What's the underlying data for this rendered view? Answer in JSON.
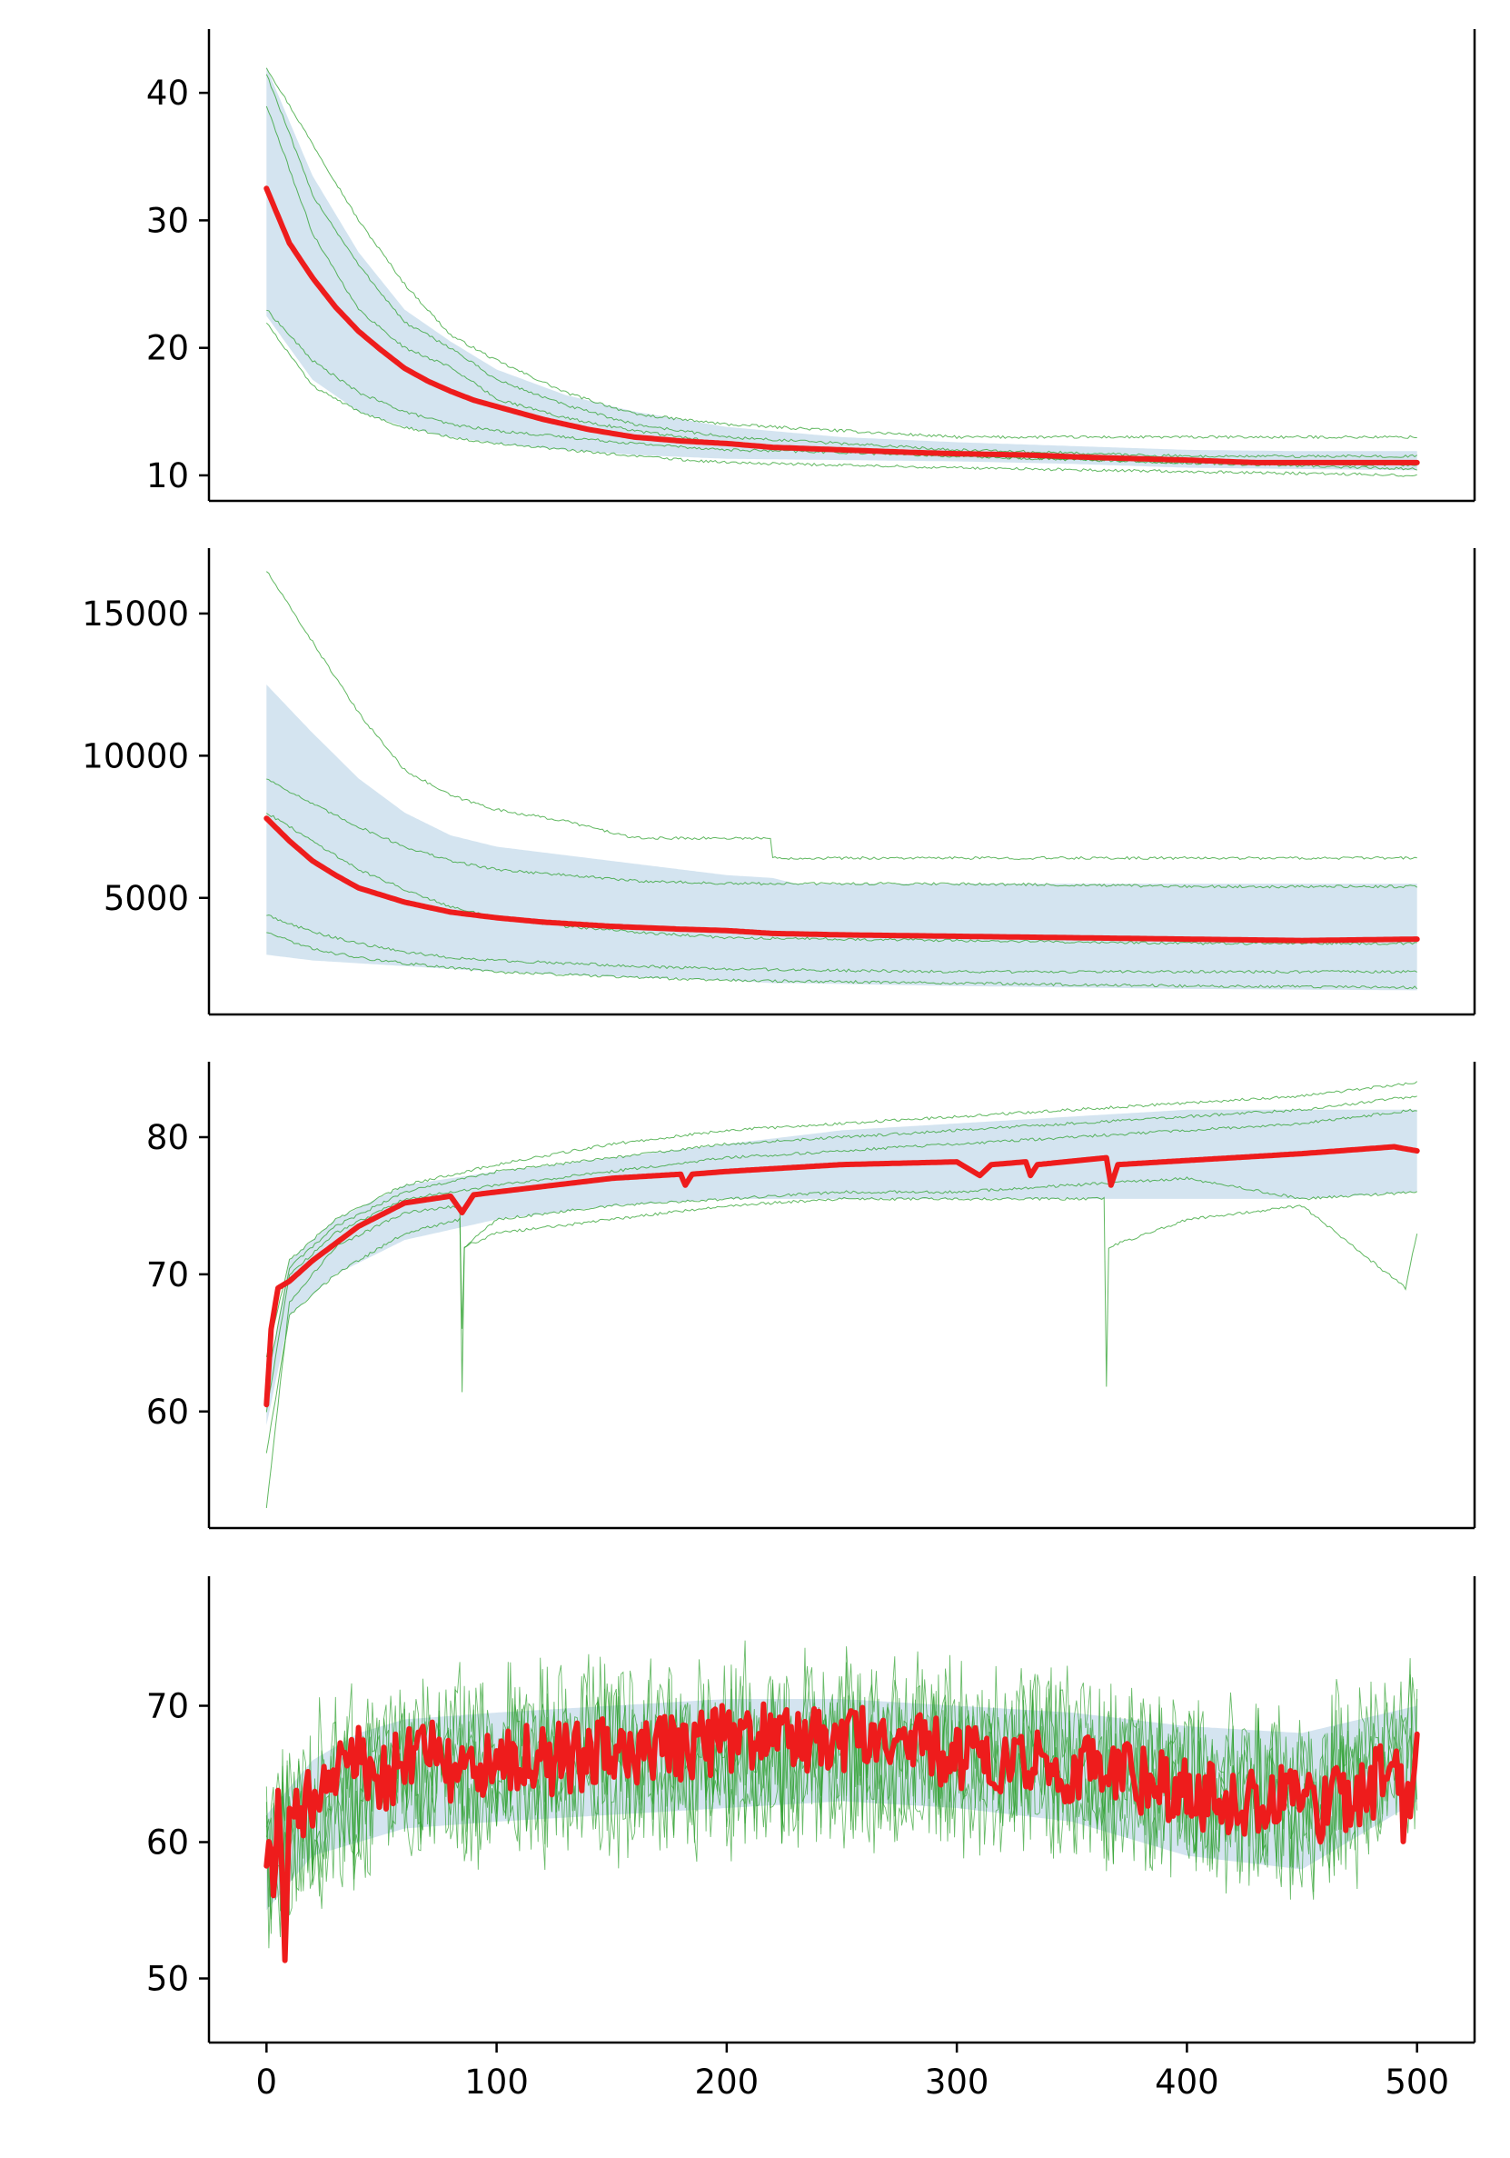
{
  "chart_data": [
    {
      "type": "line",
      "title": "",
      "xlabel": "",
      "ylabel": "",
      "xlim": [
        -25,
        525
      ],
      "ylim": [
        8,
        45
      ],
      "xticks": [
        0,
        100,
        200,
        300,
        400,
        500
      ],
      "yticks": [
        10,
        20,
        30,
        40
      ],
      "ytick_labels": [
        "10",
        "20",
        "30",
        "40"
      ],
      "show_xticks": false,
      "grid": false,
      "colors": {
        "mean": "#ee1c1c",
        "runs": "#2ca02c",
        "band": "#c6dbeb"
      },
      "mean": {
        "x": [
          0,
          10,
          20,
          30,
          40,
          50,
          60,
          70,
          80,
          90,
          100,
          120,
          140,
          160,
          180,
          200,
          220,
          250,
          280,
          300,
          330,
          360,
          400,
          430,
          460,
          500
        ],
        "y": [
          32.5,
          28.2,
          25.5,
          23.2,
          21.3,
          19.8,
          18.4,
          17.4,
          16.6,
          15.9,
          15.4,
          14.4,
          13.6,
          13.0,
          12.7,
          12.5,
          12.2,
          12.0,
          11.8,
          11.7,
          11.6,
          11.4,
          11.2,
          11.0,
          11.0,
          11.0
        ]
      },
      "band": {
        "x": [
          0,
          20,
          40,
          60,
          80,
          100,
          130,
          160,
          200,
          250,
          300,
          350,
          400,
          450,
          500
        ],
        "upper": [
          42,
          33.5,
          27.5,
          23.0,
          20.5,
          18.3,
          16.3,
          15.0,
          13.8,
          13.0,
          12.6,
          12.3,
          12.0,
          11.9,
          11.9
        ],
        "lower": [
          22.5,
          17.5,
          15.0,
          13.8,
          13.0,
          12.5,
          12.0,
          11.6,
          11.3,
          11.2,
          11.1,
          10.9,
          10.6,
          10.5,
          10.4
        ]
      },
      "runs": [
        {
          "x": [
            0,
            20,
            40,
            60,
            80,
            100,
            130,
            160,
            200,
            250,
            300,
            400,
            500
          ],
          "y": [
            42.0,
            36.0,
            30.0,
            25.0,
            21.0,
            19.0,
            16.5,
            14.8,
            14.0,
            13.5,
            13.0,
            13.0,
            13.0
          ]
        },
        {
          "x": [
            0,
            20,
            40,
            60,
            80,
            100,
            130,
            160,
            200,
            250,
            300,
            400,
            500
          ],
          "y": [
            41.5,
            32.0,
            26.5,
            22.0,
            20.0,
            17.5,
            15.5,
            14.0,
            13.0,
            12.5,
            12.0,
            11.5,
            11.5
          ]
        },
        {
          "x": [
            0,
            20,
            40,
            60,
            80,
            100,
            130,
            160,
            200,
            250,
            300,
            400,
            500
          ],
          "y": [
            39.0,
            29.0,
            23.0,
            20.0,
            18.5,
            16.0,
            14.5,
            13.5,
            12.5,
            12.0,
            11.5,
            11.0,
            10.8
          ]
        },
        {
          "x": [
            0,
            20,
            40,
            60,
            80,
            100,
            130,
            160,
            200,
            250,
            300,
            400,
            500
          ],
          "y": [
            23.0,
            19.0,
            16.5,
            15.0,
            14.0,
            13.5,
            13.0,
            12.5,
            12.0,
            11.8,
            11.5,
            11.0,
            10.5
          ]
        },
        {
          "x": [
            0,
            20,
            40,
            60,
            80,
            100,
            130,
            160,
            200,
            250,
            300,
            400,
            500
          ],
          "y": [
            22.0,
            17.0,
            15.0,
            13.8,
            13.0,
            12.5,
            12.0,
            11.5,
            11.0,
            10.8,
            10.6,
            10.3,
            10.0
          ]
        }
      ]
    },
    {
      "type": "line",
      "title": "",
      "xlabel": "",
      "ylabel": "",
      "xlim": [
        -25,
        525
      ],
      "ylim": [
        900,
        17300
      ],
      "xticks": [
        0,
        100,
        200,
        300,
        400,
        500
      ],
      "yticks": [
        5000,
        10000,
        15000
      ],
      "ytick_labels": [
        "5000",
        "10000",
        "15000"
      ],
      "show_xticks": false,
      "grid": false,
      "colors": {
        "mean": "#ee1c1c",
        "runs": "#2ca02c",
        "band": "#c6dbeb"
      },
      "mean": {
        "x": [
          0,
          10,
          20,
          30,
          40,
          60,
          80,
          100,
          120,
          150,
          180,
          200,
          220,
          250,
          300,
          350,
          400,
          450,
          500
        ],
        "y": [
          7800,
          7000,
          6300,
          5800,
          5350,
          4850,
          4500,
          4300,
          4150,
          4000,
          3900,
          3850,
          3750,
          3700,
          3650,
          3600,
          3550,
          3500,
          3550
        ]
      },
      "band": {
        "x": [
          0,
          20,
          40,
          60,
          80,
          100,
          130,
          160,
          200,
          220,
          230,
          300,
          400,
          500
        ],
        "upper": [
          12500,
          10800,
          9200,
          8000,
          7200,
          6800,
          6500,
          6200,
          5800,
          5700,
          5500,
          5500,
          5500,
          5500
        ],
        "lower": [
          3000,
          2800,
          2700,
          2600,
          2500,
          2400,
          2300,
          2200,
          2100,
          2000,
          2000,
          1900,
          1800,
          1750
        ]
      },
      "runs": [
        {
          "x": [
            0,
            20,
            40,
            60,
            80,
            100,
            130,
            160,
            200,
            219,
            220,
            300,
            400,
            500
          ],
          "y": [
            16500,
            14000,
            11500,
            9500,
            8600,
            8100,
            7700,
            7100,
            7100,
            7100,
            6400,
            6400,
            6400,
            6400
          ]
        },
        {
          "x": [
            0,
            20,
            40,
            60,
            80,
            100,
            130,
            160,
            200,
            300,
            400,
            500
          ],
          "y": [
            9200,
            8300,
            7500,
            6800,
            6300,
            6000,
            5800,
            5600,
            5500,
            5500,
            5400,
            5400
          ]
        },
        {
          "x": [
            0,
            20,
            40,
            60,
            80,
            100,
            130,
            160,
            200,
            300,
            400,
            500
          ],
          "y": [
            8000,
            7000,
            6000,
            5300,
            4700,
            4300,
            4000,
            3800,
            3600,
            3500,
            3400,
            3400
          ]
        },
        {
          "x": [
            0,
            20,
            40,
            60,
            80,
            100,
            130,
            160,
            200,
            300,
            400,
            500
          ],
          "y": [
            4400,
            3800,
            3400,
            3100,
            2900,
            2800,
            2700,
            2600,
            2500,
            2400,
            2400,
            2400
          ]
        },
        {
          "x": [
            0,
            20,
            40,
            60,
            80,
            100,
            130,
            160,
            200,
            300,
            400,
            500
          ],
          "y": [
            3800,
            3200,
            2900,
            2700,
            2550,
            2400,
            2300,
            2200,
            2100,
            2000,
            1900,
            1850
          ]
        }
      ]
    },
    {
      "type": "line",
      "title": "",
      "xlabel": "",
      "ylabel": "",
      "xlim": [
        -25,
        525
      ],
      "ylim": [
        51.5,
        85.5
      ],
      "xticks": [
        0,
        100,
        200,
        300,
        400,
        500
      ],
      "yticks": [
        60,
        70,
        80
      ],
      "ytick_labels": [
        "60",
        "70",
        "80"
      ],
      "show_xticks": false,
      "grid": false,
      "colors": {
        "mean": "#ee1c1c",
        "runs": "#2ca02c",
        "band": "#c6dbeb"
      },
      "mean": {
        "x": [
          0,
          2,
          5,
          10,
          20,
          40,
          60,
          80,
          85,
          90,
          100,
          150,
          180,
          182,
          185,
          200,
          250,
          300,
          310,
          315,
          330,
          332,
          335,
          365,
          367,
          370,
          400,
          450,
          490,
          500
        ],
        "y": [
          60.5,
          66.0,
          69.0,
          69.5,
          71.0,
          73.5,
          75.2,
          75.7,
          74.5,
          75.8,
          76.0,
          77.0,
          77.3,
          76.5,
          77.3,
          77.5,
          78.0,
          78.2,
          77.2,
          78.0,
          78.2,
          77.2,
          78.0,
          78.5,
          76.5,
          78.0,
          78.3,
          78.8,
          79.3,
          79.0
        ]
      },
      "band": {
        "x": [
          0,
          10,
          30,
          60,
          100,
          150,
          200,
          250,
          300,
          350,
          400,
          450,
          500
        ],
        "upper": [
          62,
          71,
          74,
          76.5,
          77.5,
          78.5,
          79.5,
          80.5,
          81,
          81.5,
          82,
          82,
          82
        ],
        "lower": [
          59,
          67,
          70,
          72.5,
          74,
          75,
          75.5,
          75.5,
          75.5,
          75.5,
          75.5,
          75.5,
          76
        ]
      },
      "runs": [
        {
          "x": [
            0,
            10,
            30,
            60,
            100,
            150,
            200,
            250,
            300,
            350,
            400,
            450,
            500
          ],
          "y": [
            64,
            71,
            74,
            76.5,
            78,
            79.5,
            80.5,
            81,
            81.5,
            82,
            82.5,
            83,
            84
          ]
        },
        {
          "x": [
            0,
            10,
            30,
            60,
            100,
            150,
            200,
            250,
            300,
            350,
            400,
            450,
            500
          ],
          "y": [
            62,
            70.5,
            73.5,
            76,
            77.5,
            78.5,
            79.5,
            80,
            80.5,
            81,
            81.5,
            82,
            83
          ]
        },
        {
          "x": [
            0,
            10,
            30,
            60,
            100,
            150,
            200,
            250,
            300,
            350,
            400,
            450,
            500
          ],
          "y": [
            60,
            70,
            73,
            75.5,
            76.5,
            77.5,
            78.5,
            79,
            79.5,
            80,
            80.5,
            81,
            82
          ]
        },
        {
          "x": [
            0,
            10,
            30,
            60,
            84,
            85,
            86,
            100,
            150,
            200,
            250,
            300,
            350,
            400,
            450,
            500
          ],
          "y": [
            53,
            68,
            72,
            74.5,
            75,
            61.5,
            72,
            74,
            75,
            75.5,
            76,
            76,
            76.5,
            77,
            75.5,
            76
          ]
        },
        {
          "x": [
            0,
            10,
            30,
            60,
            84,
            85,
            86,
            100,
            150,
            200,
            250,
            300,
            364,
            365,
            366,
            400,
            450,
            495,
            500
          ],
          "y": [
            57,
            67,
            70,
            73,
            74,
            66,
            72,
            73,
            74,
            75,
            75.5,
            75.5,
            75.5,
            61.8,
            72,
            74,
            75,
            69,
            73
          ]
        }
      ]
    },
    {
      "type": "line",
      "title": "",
      "xlabel": "",
      "ylabel": "",
      "xlim": [
        -25,
        525
      ],
      "ylim": [
        45.3,
        79.5
      ],
      "xticks": [
        0,
        100,
        200,
        300,
        400,
        500
      ],
      "xtick_labels": [
        "0",
        "100",
        "200",
        "300",
        "400",
        "500"
      ],
      "yticks": [
        50,
        60,
        70
      ],
      "ytick_labels": [
        "50",
        "60",
        "70"
      ],
      "show_xticks": true,
      "grid": false,
      "colors": {
        "mean": "#ee1c1c",
        "runs": "#2ca02c",
        "band": "#c6dbeb"
      },
      "mean": {
        "x": [
          0,
          3,
          5,
          8,
          10,
          15,
          20,
          30,
          40,
          50,
          60,
          70,
          80,
          100,
          120,
          150,
          180,
          200,
          220,
          250,
          280,
          300,
          320,
          350,
          380,
          400,
          420,
          440,
          460,
          480,
          490,
          495,
          500
        ],
        "y": [
          58.5,
          57,
          62,
          52,
          60,
          62,
          63,
          65,
          66,
          64.5,
          66,
          67,
          65,
          66,
          66,
          66.5,
          67,
          67.5,
          68,
          67.5,
          67,
          66.5,
          66,
          65.5,
          64.5,
          63.5,
          63,
          63,
          62.5,
          64,
          66,
          61,
          67
        ]
      },
      "mean_noise": 2.6,
      "band": {
        "x": [
          0,
          20,
          40,
          60,
          100,
          150,
          200,
          250,
          300,
          350,
          400,
          450,
          500
        ],
        "upper": [
          62,
          66,
          68,
          69,
          69.5,
          70,
          70.5,
          70.5,
          70,
          69.5,
          68.5,
          68,
          70
        ],
        "lower": [
          55,
          59,
          60,
          61,
          61.5,
          62,
          62.5,
          63,
          62.5,
          61.5,
          59,
          58,
          63
        ]
      },
      "runs_noise": {
        "count": 5,
        "spread": 5.5,
        "min": 46.5,
        "max": 78
      }
    }
  ]
}
